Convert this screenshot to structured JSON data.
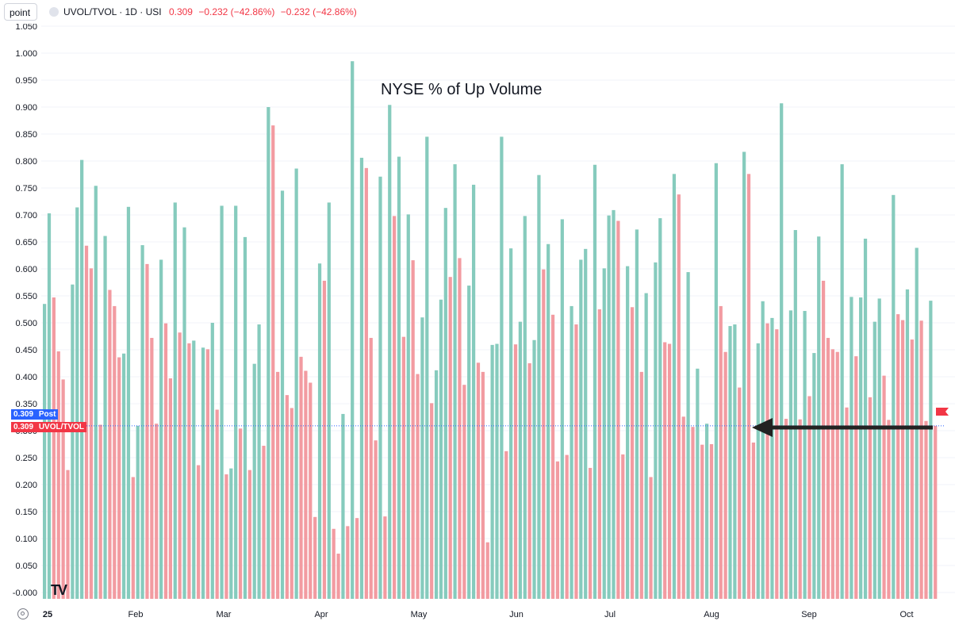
{
  "toolbar": {
    "chart_type": "point",
    "symbol": "UVOL/TVOL · 1D · USI",
    "last": "0.309",
    "change": "−0.232 (−42.86%)",
    "change2": "−0.232 (−42.86%)"
  },
  "annotation": "NYSE % of Up Volume",
  "badges": {
    "post_value": "0.309",
    "post_label": "Post",
    "main_value": "0.309",
    "main_label": "UVOL/TVOL"
  },
  "logo": "TV",
  "colors": {
    "up": "#86cbbd",
    "down": "#f29ba1",
    "post_badge": "#2962ff",
    "main_badge": "#f23645",
    "arrow": "#222222"
  },
  "chart_data": {
    "type": "bar",
    "title": "NYSE % of Up Volume",
    "ylim": [
      0,
      1.05
    ],
    "y_ticks": [
      "1.050",
      "1.000",
      "0.950",
      "0.900",
      "0.850",
      "0.800",
      "0.750",
      "0.700",
      "0.650",
      "0.600",
      "0.550",
      "0.500",
      "0.450",
      "0.400",
      "0.350",
      "0.300",
      "0.250",
      "0.200",
      "0.150",
      "0.100",
      "0.050",
      "-0.000"
    ],
    "x_labels": [
      "25",
      "Feb",
      "Mar",
      "Apr",
      "May",
      "Jun",
      "Jul",
      "Aug",
      "Sep",
      "Oct"
    ],
    "last_value": 0.309,
    "values": [
      0.535,
      0.703,
      0.547,
      0.447,
      0.395,
      0.227,
      0.571,
      0.714,
      0.802,
      0.643,
      0.601,
      0.754,
      0.311,
      0.661,
      0.561,
      0.531,
      0.436,
      0.443,
      0.715,
      0.214,
      0.309,
      0.644,
      0.609,
      0.472,
      0.313,
      0.617,
      0.499,
      0.397,
      0.723,
      0.482,
      0.677,
      0.462,
      0.467,
      0.236,
      0.454,
      0.451,
      0.5,
      0.339,
      0.717,
      0.219,
      0.23,
      0.717,
      0.304,
      0.659,
      0.227,
      0.424,
      0.497,
      0.272,
      0.9,
      0.866,
      0.409,
      0.745,
      0.366,
      0.342,
      0.786,
      0.437,
      0.411,
      0.389,
      0.14,
      0.61,
      0.578,
      0.723,
      0.118,
      0.072,
      0.331,
      0.123,
      0.985,
      0.138,
      0.806,
      0.787,
      0.472,
      0.282,
      0.771,
      0.141,
      0.904,
      0.698,
      0.808,
      0.474,
      0.701,
      0.616,
      0.405,
      0.51,
      0.845,
      0.351,
      0.412,
      0.543,
      0.713,
      0.585,
      0.794,
      0.62,
      0.385,
      0.569,
      0.756,
      0.426,
      0.409,
      0.093,
      0.459,
      0.461,
      0.845,
      0.262,
      0.638,
      0.46,
      0.502,
      0.698,
      0.425,
      0.468,
      0.774,
      0.599,
      0.646,
      0.515,
      0.243,
      0.692,
      0.255,
      0.531,
      0.497,
      0.617,
      0.637,
      0.231,
      0.793,
      0.525,
      0.601,
      0.699,
      0.709,
      0.689,
      0.256,
      0.605,
      0.529,
      0.673,
      0.409,
      0.555,
      0.214,
      0.612,
      0.694,
      0.464,
      0.461,
      0.776,
      0.738,
      0.326,
      0.594,
      0.307,
      0.415,
      0.274,
      0.313,
      0.275,
      0.796,
      0.531,
      0.446,
      0.494,
      0.497,
      0.38,
      0.817,
      0.776,
      0.278,
      0.462,
      0.54,
      0.499,
      0.509,
      0.488,
      0.907,
      0.322,
      0.523,
      0.672,
      0.321,
      0.522,
      0.364,
      0.444,
      0.66,
      0.578,
      0.472,
      0.451,
      0.446,
      0.794,
      0.343,
      0.548,
      0.438,
      0.547,
      0.656,
      0.362,
      0.502,
      0.545,
      0.402,
      0.32,
      0.737,
      0.516,
      0.505,
      0.562,
      0.469,
      0.639,
      0.504,
      0.318,
      0.541,
      0.309
    ]
  }
}
